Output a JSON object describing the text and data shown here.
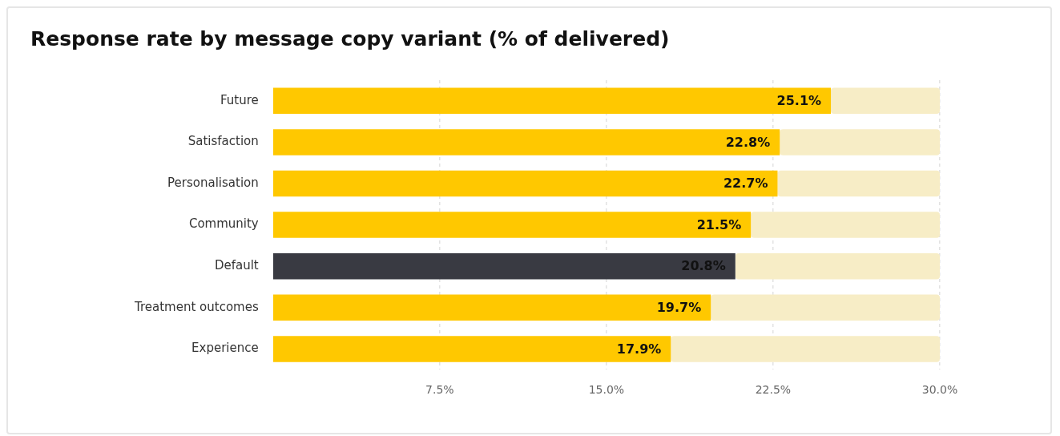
{
  "chart_data": {
    "type": "bar",
    "orientation": "horizontal",
    "title": "Response rate by message copy variant (% of delivered)",
    "categories": [
      "Future",
      "Satisfaction",
      "Personalisation",
      "Community",
      "Default",
      "Treatment outcomes",
      "Experience"
    ],
    "series": [
      {
        "colors": [
          "#ffc800",
          "#ffc800",
          "#ffc800",
          "#ffc800",
          "#393a42",
          "#ffc800",
          "#ffc800"
        ],
        "values": [
          25.1,
          22.8,
          22.7,
          21.5,
          20.8,
          19.7,
          17.9
        ],
        "value_labels": [
          "25.1%",
          "22.8%",
          "22.7%",
          "21.5%",
          "20.8%",
          "19.7%",
          "17.9%"
        ]
      },
      {
        "color": "#f7edc6",
        "values": [
          4.9,
          7.2,
          7.3,
          8.5,
          9.2,
          10.3,
          12.1
        ]
      }
    ],
    "xlim": [
      0,
      30
    ],
    "xticks": [
      {
        "value": 7.5,
        "label": "7.5%"
      },
      {
        "value": 15,
        "label": "15.0%"
      },
      {
        "value": 22.5,
        "label": "22.5%"
      },
      {
        "value": 30,
        "label": "30.0%"
      }
    ],
    "stacked": true,
    "grid": "x",
    "legend": false
  }
}
